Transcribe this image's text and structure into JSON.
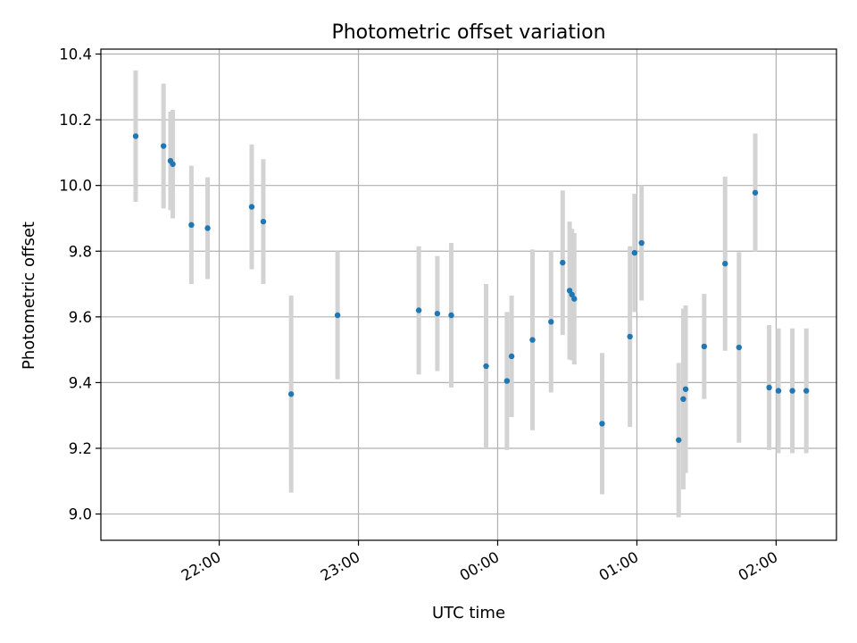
{
  "chart_data": {
    "type": "scatter",
    "title": "Photometric offset variation",
    "xlabel": "UTC time",
    "ylabel": "Photometric offset",
    "grid": true,
    "xlim": [
      "21:09",
      "02:26"
    ],
    "ylim": [
      8.92,
      10.415
    ],
    "x_ticks": [
      "22:00",
      "23:00",
      "00:00",
      "01:00",
      "02:00"
    ],
    "y_ticks": [
      9.0,
      9.2,
      9.4,
      9.6,
      9.8,
      10.0,
      10.2,
      10.4
    ],
    "point_color": "#1f77b4",
    "errorbar_color": "#d3d3d3",
    "points": [
      {
        "x": "21:24",
        "y": 10.15,
        "err": 0.2
      },
      {
        "x": "21:36",
        "y": 10.12,
        "err": 0.19
      },
      {
        "x": "21:39",
        "y": 10.075,
        "err": 0.15
      },
      {
        "x": "21:40",
        "y": 10.065,
        "err": 0.165
      },
      {
        "x": "21:48",
        "y": 9.88,
        "err": 0.18
      },
      {
        "x": "21:55",
        "y": 9.87,
        "err": 0.155
      },
      {
        "x": "22:14",
        "y": 9.935,
        "err": 0.19
      },
      {
        "x": "22:19",
        "y": 9.89,
        "err": 0.19
      },
      {
        "x": "22:31",
        "y": 9.365,
        "err": 0.3
      },
      {
        "x": "22:51",
        "y": 9.605,
        "err": 0.195
      },
      {
        "x": "23:26",
        "y": 9.62,
        "err": 0.195
      },
      {
        "x": "23:34",
        "y": 9.61,
        "err": 0.175
      },
      {
        "x": "23:40",
        "y": 9.605,
        "err": 0.22
      },
      {
        "x": "23:55",
        "y": 9.45,
        "err": 0.25
      },
      {
        "x": "00:04",
        "y": 9.405,
        "err": 0.21
      },
      {
        "x": "00:06",
        "y": 9.48,
        "err": 0.185
      },
      {
        "x": "00:15",
        "y": 9.53,
        "err": 0.275
      },
      {
        "x": "00:23",
        "y": 9.585,
        "err": 0.215
      },
      {
        "x": "00:28",
        "y": 9.765,
        "err": 0.22
      },
      {
        "x": "00:31",
        "y": 9.68,
        "err": 0.21
      },
      {
        "x": "00:32",
        "y": 9.668,
        "err": 0.2
      },
      {
        "x": "00:33",
        "y": 9.655,
        "err": 0.2
      },
      {
        "x": "00:45",
        "y": 9.275,
        "err": 0.215
      },
      {
        "x": "00:57",
        "y": 9.54,
        "err": 0.275
      },
      {
        "x": "00:59",
        "y": 9.795,
        "err": 0.18
      },
      {
        "x": "01:02",
        "y": 9.825,
        "err": 0.175
      },
      {
        "x": "01:18",
        "y": 9.225,
        "err": 0.235
      },
      {
        "x": "01:20",
        "y": 9.35,
        "err": 0.275
      },
      {
        "x": "01:21",
        "y": 9.38,
        "err": 0.255
      },
      {
        "x": "01:29",
        "y": 9.51,
        "err": 0.16
      },
      {
        "x": "01:38",
        "y": 9.762,
        "err": 0.265
      },
      {
        "x": "01:44",
        "y": 9.507,
        "err": 0.29
      },
      {
        "x": "01:51",
        "y": 9.978,
        "err": 0.18
      },
      {
        "x": "01:57",
        "y": 9.385,
        "err": 0.19
      },
      {
        "x": "02:01",
        "y": 9.375,
        "err": 0.19
      },
      {
        "x": "02:07",
        "y": 9.375,
        "err": 0.19
      },
      {
        "x": "02:13",
        "y": 9.375,
        "err": 0.19
      }
    ]
  }
}
